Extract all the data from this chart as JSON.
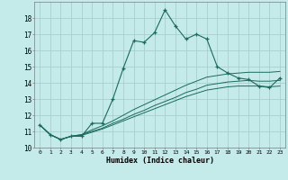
{
  "title": "",
  "xlabel": "Humidex (Indice chaleur)",
  "bg_color": "#c5eaea",
  "grid_color": "#a8cece",
  "line_color": "#1a6b5a",
  "xlim": [
    -0.5,
    23.5
  ],
  "ylim": [
    10,
    19
  ],
  "yticks": [
    10,
    11,
    12,
    13,
    14,
    15,
    16,
    17,
    18
  ],
  "xticks": [
    0,
    1,
    2,
    3,
    4,
    5,
    6,
    7,
    8,
    9,
    10,
    11,
    12,
    13,
    14,
    15,
    16,
    17,
    18,
    19,
    20,
    21,
    22,
    23
  ],
  "xtick_labels": [
    "0",
    "1",
    "2",
    "3",
    "4",
    "5",
    "6",
    "7",
    "8",
    "9",
    "10",
    "11",
    "12",
    "13",
    "14",
    "15",
    "16",
    "17",
    "18",
    "19",
    "20",
    "21",
    "22",
    "23"
  ],
  "curve1_x": [
    0,
    1,
    2,
    3,
    4,
    5,
    6,
    7,
    8,
    9,
    10,
    11,
    12,
    13,
    14,
    15,
    16,
    17,
    18,
    19,
    20,
    21,
    22,
    23
  ],
  "curve1_y": [
    11.4,
    10.8,
    10.5,
    10.7,
    10.7,
    11.5,
    11.5,
    13.0,
    14.9,
    16.6,
    16.5,
    17.1,
    18.5,
    17.5,
    16.7,
    17.0,
    16.7,
    15.0,
    14.6,
    14.3,
    14.2,
    13.8,
    13.7,
    14.3
  ],
  "curve2_x": [
    0,
    1,
    2,
    3,
    4,
    5,
    6,
    7,
    8,
    9,
    10,
    11,
    12,
    13,
    14,
    15,
    16,
    17,
    18,
    19,
    20,
    21,
    22,
    23
  ],
  "curve2_y": [
    11.4,
    10.8,
    10.5,
    10.7,
    10.8,
    11.1,
    11.35,
    11.65,
    12.0,
    12.35,
    12.65,
    12.95,
    13.25,
    13.55,
    13.85,
    14.1,
    14.35,
    14.45,
    14.55,
    14.6,
    14.65,
    14.65,
    14.65,
    14.7
  ],
  "curve3_x": [
    0,
    1,
    2,
    3,
    4,
    5,
    6,
    7,
    8,
    9,
    10,
    11,
    12,
    13,
    14,
    15,
    16,
    17,
    18,
    19,
    20,
    21,
    22,
    23
  ],
  "curve3_y": [
    11.4,
    10.8,
    10.5,
    10.7,
    10.8,
    11.0,
    11.2,
    11.5,
    11.75,
    12.05,
    12.3,
    12.6,
    12.85,
    13.1,
    13.4,
    13.6,
    13.85,
    13.95,
    14.05,
    14.1,
    14.15,
    14.1,
    14.1,
    14.15
  ],
  "curve4_x": [
    0,
    1,
    2,
    3,
    4,
    5,
    6,
    7,
    8,
    9,
    10,
    11,
    12,
    13,
    14,
    15,
    16,
    17,
    18,
    19,
    20,
    21,
    22,
    23
  ],
  "curve4_y": [
    11.4,
    10.8,
    10.5,
    10.7,
    10.75,
    10.95,
    11.15,
    11.4,
    11.65,
    11.9,
    12.15,
    12.4,
    12.65,
    12.9,
    13.15,
    13.35,
    13.55,
    13.65,
    13.75,
    13.8,
    13.8,
    13.8,
    13.75,
    13.8
  ]
}
